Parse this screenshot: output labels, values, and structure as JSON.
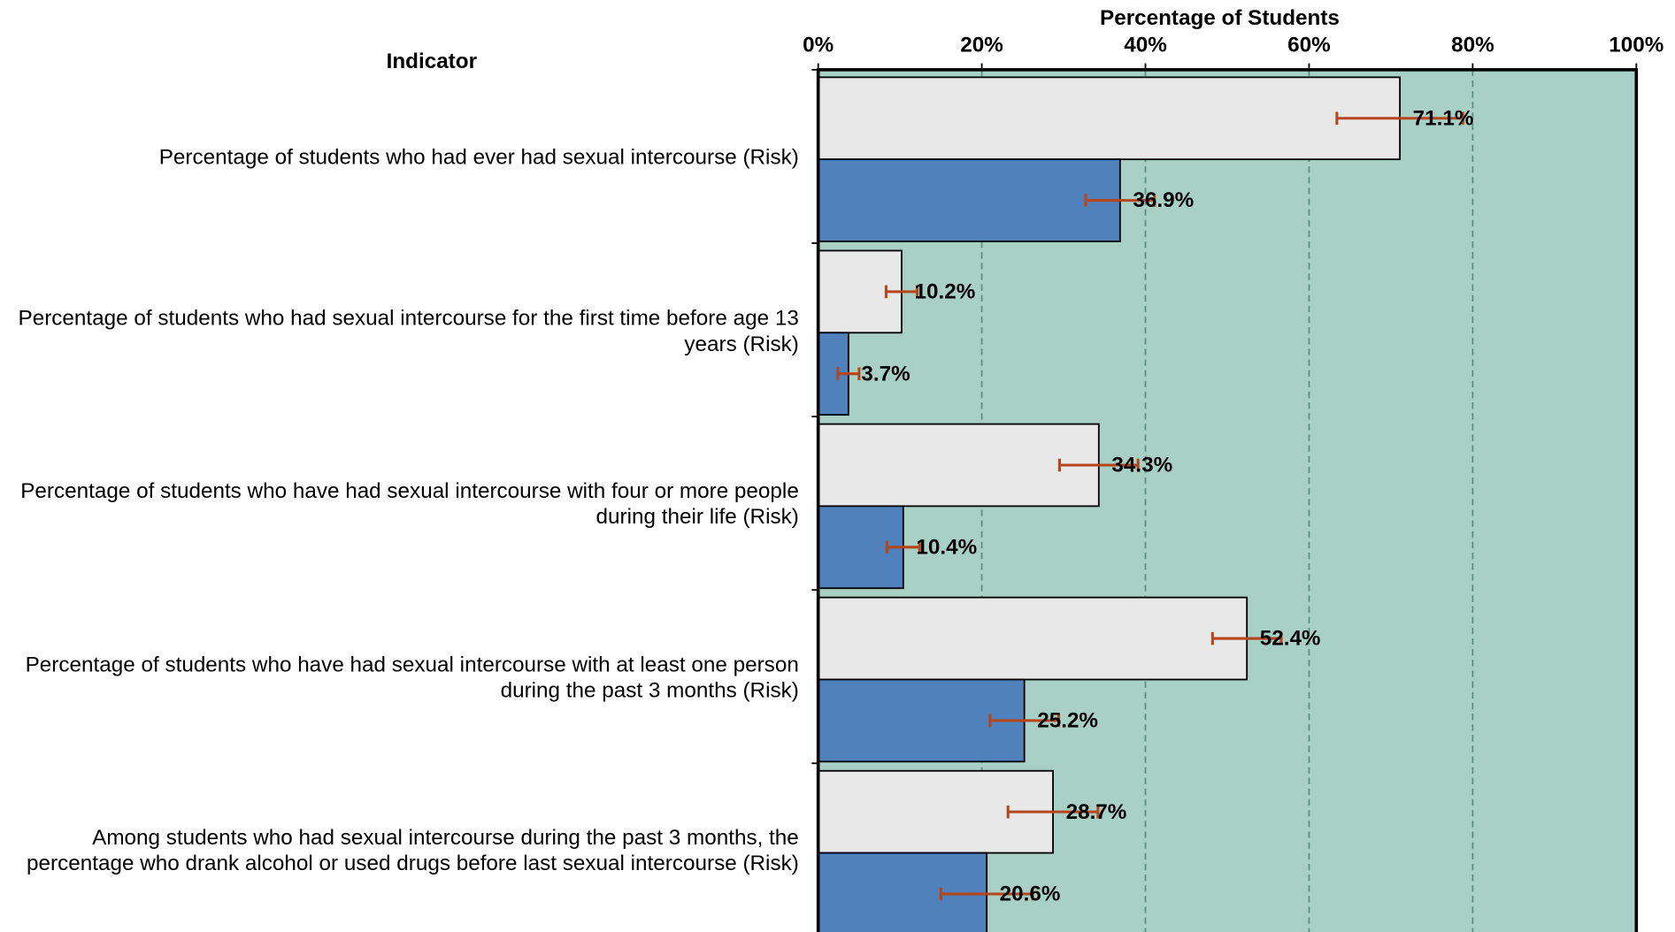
{
  "chart_data": {
    "type": "bar",
    "orientation": "horizontal",
    "x_label": "Percentage of Students",
    "y_label": "Indicator",
    "categories": [
      "Percentage of students who had ever had sexual intercourse (Risk)",
      "Percentage of students who had sexual intercourse for the first time before age 13 years (Risk)",
      "Percentage of students who have had sexual intercourse with four or more people during their life (Risk)",
      "Percentage of students who have had sexual intercourse with at least one person during the past 3 months (Risk)",
      "Among students who had sexual intercourse during the past 3 months, the percentage who drank alcohol or used drugs before last sexual intercourse (Risk)"
    ],
    "series": [
      {
        "color": "#e8e8e8",
        "values": [
          71.1,
          10.2,
          34.3,
          52.4,
          28.7
        ],
        "value_labels": [
          "71.1%",
          "10.2%",
          "34.3%",
          "52.4%",
          "28.7%"
        ],
        "errors": [
          7.7,
          1.9,
          4.8,
          4.2,
          5.5
        ]
      },
      {
        "color": "#4f81bd",
        "values": [
          36.9,
          3.7,
          10.4,
          25.2,
          20.6
        ],
        "value_labels": [
          "36.9%",
          "3.7%",
          "10.4%",
          "25.2%",
          "20.6%"
        ],
        "errors": [
          4.2,
          1.3,
          2.0,
          4.2,
          5.6
        ]
      }
    ],
    "error_color": "#b5451b",
    "plot_background": "#a9d0c4",
    "xlim": [
      0,
      100
    ],
    "xticks": [
      {
        "value": 0,
        "label": "0%"
      },
      {
        "value": 20,
        "label": "20%"
      },
      {
        "value": 40,
        "label": "40%"
      },
      {
        "value": 60,
        "label": "60%"
      },
      {
        "value": 80,
        "label": "80%"
      },
      {
        "value": 100,
        "label": "100%"
      }
    ],
    "grid": true
  }
}
